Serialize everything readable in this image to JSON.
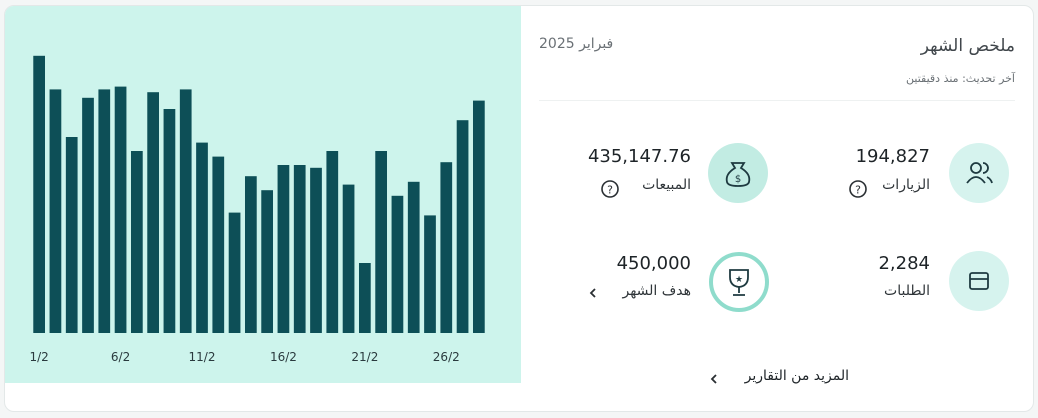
{
  "summary": {
    "title": "ملخص الشهر",
    "updated": "آخر تحديث: منذ دقيقتين",
    "period": "فبراير 2025",
    "stats": [
      {
        "value": "194,827",
        "label": "الزيارات"
      },
      {
        "value": "435,147.76",
        "label": "المبيعات"
      },
      {
        "value": "2,284",
        "label": "الطلبات"
      },
      {
        "value": "450,000",
        "label": "هدف الشهر"
      }
    ],
    "more": "المزيد من التقارير"
  },
  "chart_data": {
    "type": "bar",
    "color": "#0d4f57",
    "categories": [
      "1/2",
      null,
      null,
      null,
      null,
      "6/2",
      null,
      null,
      null,
      null,
      "11/2",
      null,
      null,
      null,
      null,
      "16/2",
      null,
      null,
      null,
      null,
      "21/2",
      null,
      null,
      null,
      null,
      "26/2",
      null,
      null
    ],
    "values": [
      99,
      87,
      70,
      84,
      87,
      88,
      65,
      86,
      80,
      87,
      68,
      63,
      43,
      56,
      51,
      60,
      60,
      59,
      65,
      53,
      25,
      65,
      49,
      54,
      42,
      61,
      76,
      83
    ],
    "ylim": [
      0,
      100
    ]
  }
}
